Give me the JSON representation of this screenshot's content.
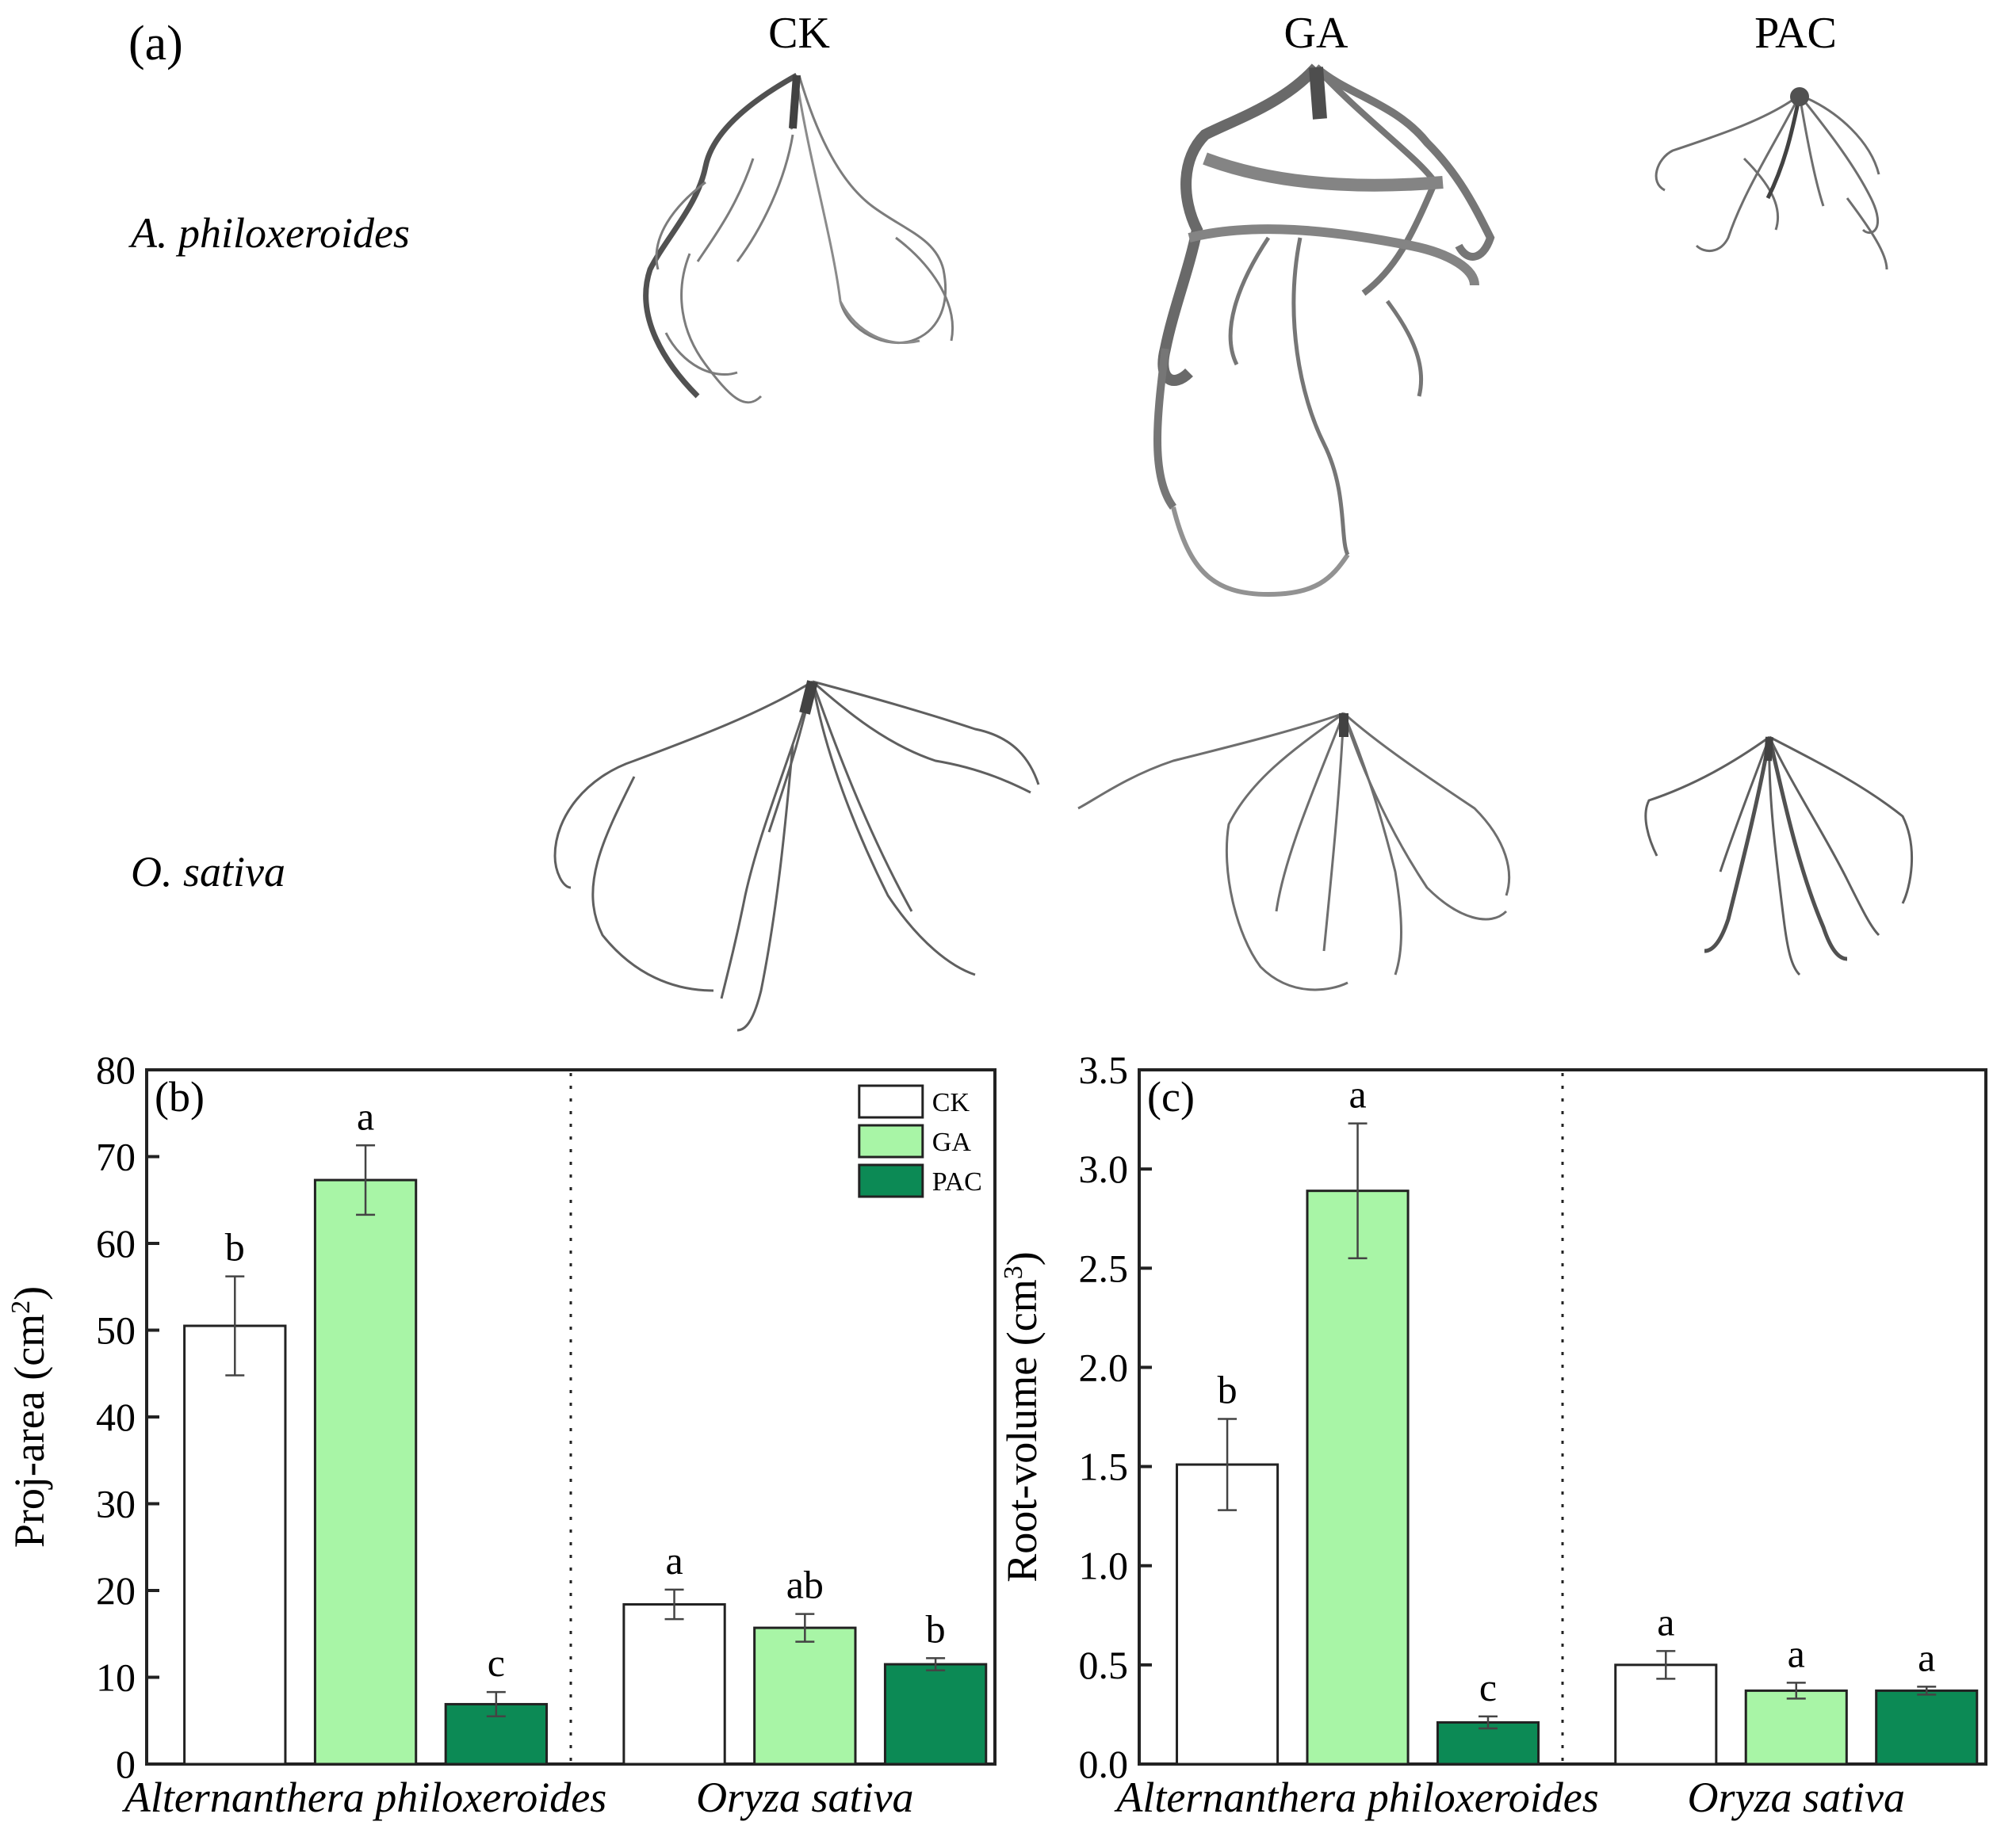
{
  "panel_a": {
    "label": "(a)",
    "columns": [
      "CK",
      "GA",
      "PAC"
    ],
    "rows": [
      "A. philoxeroides",
      "O. sativa"
    ]
  },
  "chart_data": [
    {
      "panel": "(b)",
      "type": "bar",
      "categories": [
        "Alternanthera philoxeroides",
        "Oryza sativa"
      ],
      "series": [
        {
          "name": "CK",
          "color": "#ffffff",
          "values": [
            50.5,
            18.4
          ],
          "errors": [
            5.7,
            1.7
          ],
          "letters": [
            "b",
            "a"
          ]
        },
        {
          "name": "GA",
          "color": "#a8f5a6",
          "values": [
            67.3,
            15.7
          ],
          "errors": [
            4.0,
            1.6
          ],
          "letters": [
            "a",
            "ab"
          ]
        },
        {
          "name": "PAC",
          "color": "#0c8a55",
          "values": [
            6.9,
            11.5
          ],
          "errors": [
            1.4,
            0.7
          ],
          "letters": [
            "c",
            "b"
          ]
        }
      ],
      "ylabel": "Proj-area (cm",
      "ylabel_sup": "2",
      "ylabel_end": ")",
      "ylim": [
        0,
        80
      ],
      "yticks": [
        0,
        10,
        20,
        30,
        40,
        50,
        60,
        70,
        80
      ],
      "ytick_labels": [
        "0",
        "10",
        "20",
        "30",
        "40",
        "50",
        "60",
        "70",
        "80"
      ],
      "legend": [
        "CK",
        "GA",
        "PAC"
      ],
      "legend_position": "top-right",
      "divider": "dotted"
    },
    {
      "panel": "(c)",
      "type": "bar",
      "categories": [
        "Alternanthera philoxeroides",
        "Oryza sativa"
      ],
      "series": [
        {
          "name": "CK",
          "color": "#ffffff",
          "values": [
            1.51,
            0.5
          ],
          "errors": [
            0.23,
            0.07
          ],
          "letters": [
            "b",
            "a"
          ]
        },
        {
          "name": "GA",
          "color": "#a8f5a6",
          "values": [
            2.89,
            0.37
          ],
          "errors": [
            0.34,
            0.04
          ],
          "letters": [
            "a",
            "a"
          ]
        },
        {
          "name": "PAC",
          "color": "#0c8a55",
          "values": [
            0.21,
            0.37
          ],
          "errors": [
            0.03,
            0.02
          ],
          "letters": [
            "c",
            "a"
          ]
        }
      ],
      "ylabel": "Root-volume (cm",
      "ylabel_sup": "3",
      "ylabel_end": ")",
      "ylim": [
        0,
        3.5
      ],
      "yticks": [
        0,
        0.5,
        1,
        1.5,
        2,
        2.5,
        3,
        3.5
      ],
      "ytick_labels": [
        "0.0",
        "0.5",
        "1.0",
        "1.5",
        "2.0",
        "2.5",
        "3.0",
        "3.5"
      ],
      "legend_position": "none",
      "divider": "dotted"
    }
  ],
  "colors": {
    "axis": "#222222",
    "root": "#555555",
    "root_dark": "#2a2a2a"
  }
}
